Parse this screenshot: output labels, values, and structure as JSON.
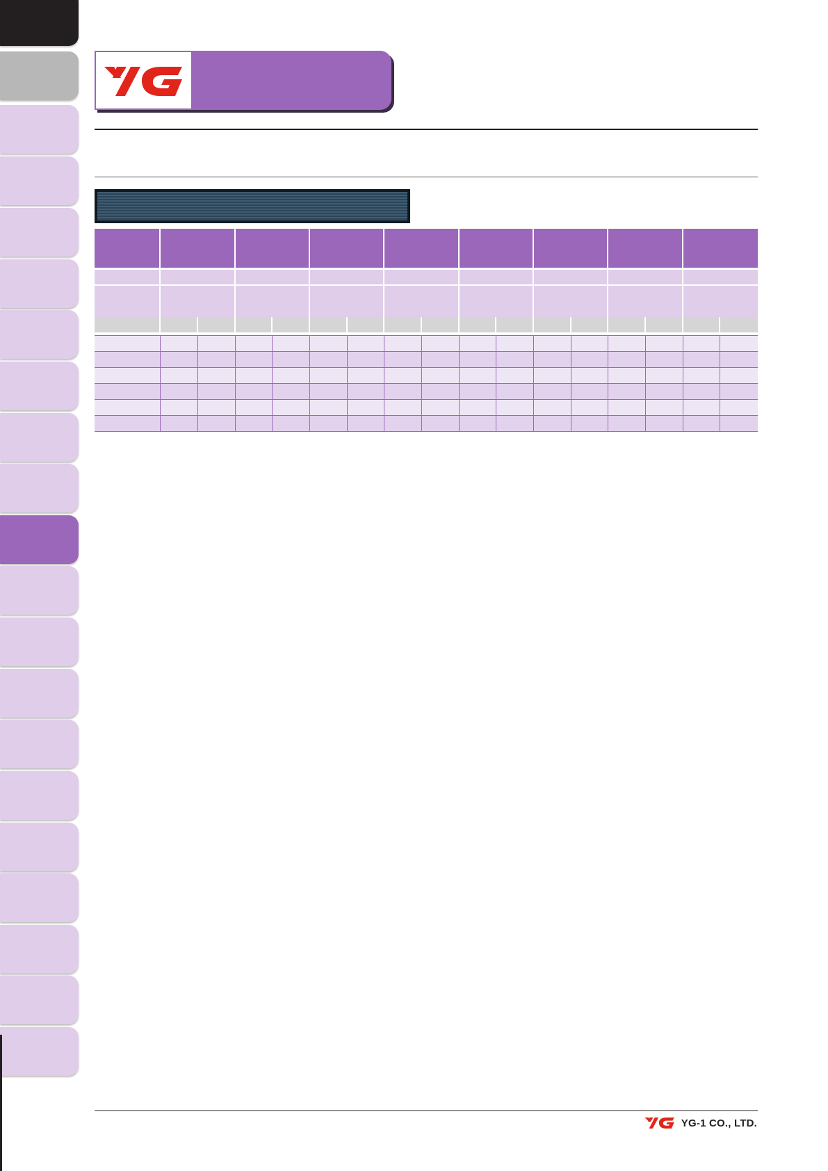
{
  "brand": {
    "logo_text": "YG",
    "company": "YG-1 CO., LTD.",
    "accent_color": "#9b67ba",
    "logo_color": "#e1251b"
  },
  "side_tabs": {
    "active_index": 10,
    "count": 21
  },
  "table": {
    "group_count": 8,
    "data_row_count": 6
  }
}
